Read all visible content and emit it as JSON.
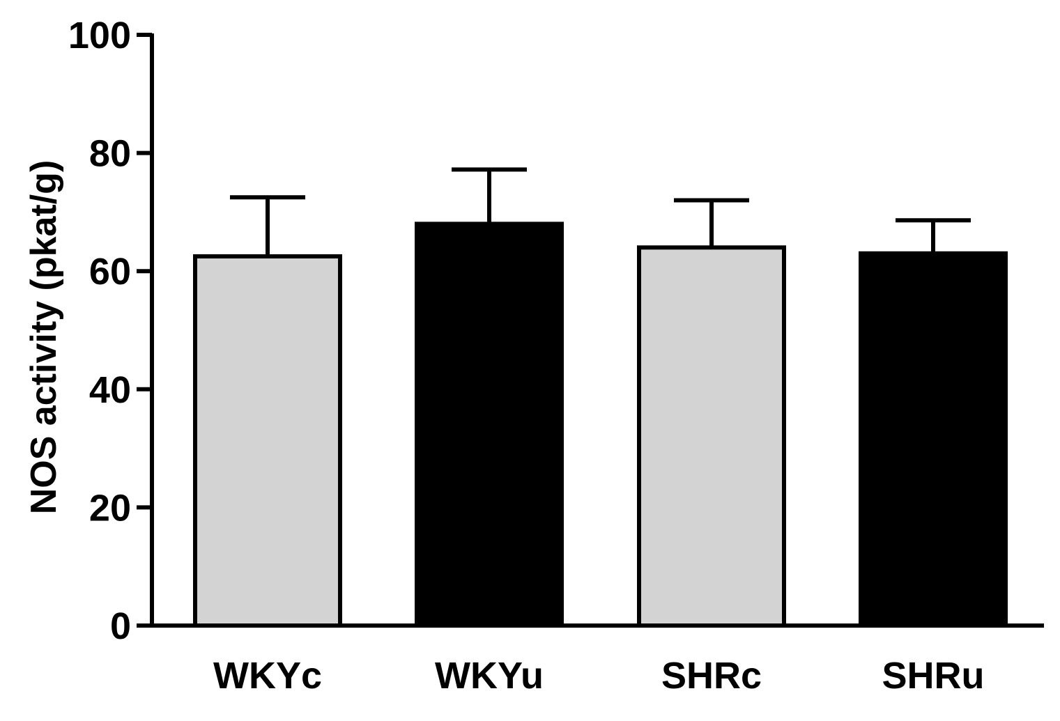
{
  "chart_data": {
    "type": "bar",
    "categories": [
      "WKYc",
      "WKYu",
      "SHRc",
      "SHRu"
    ],
    "values": [
      62.5,
      68.0,
      64.0,
      63.0
    ],
    "errors": [
      10.0,
      9.2,
      8.0,
      5.6
    ],
    "bar_colors": [
      "#d3d3d3",
      "#000000",
      "#d3d3d3",
      "#000000"
    ],
    "title": "",
    "xlabel": "",
    "ylabel": "NOS activity (pkat/g)",
    "ylim": [
      0,
      100
    ],
    "yticks": [
      0,
      20,
      40,
      60,
      80,
      100
    ],
    "error_bars": "upper",
    "grid": false,
    "legend": "none"
  }
}
